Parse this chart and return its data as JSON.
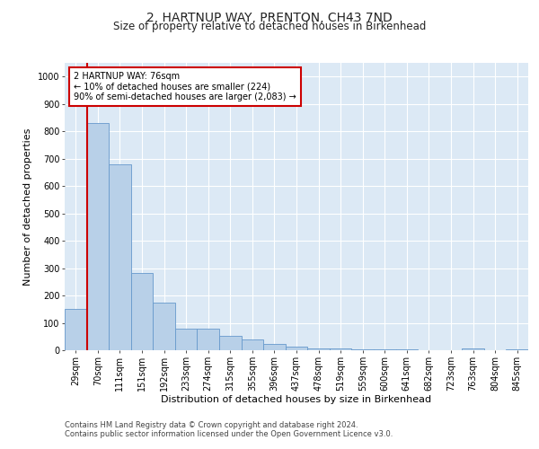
{
  "title": "2, HARTNUP WAY, PRENTON, CH43 7ND",
  "subtitle": "Size of property relative to detached houses in Birkenhead",
  "xlabel": "Distribution of detached houses by size in Birkenhead",
  "ylabel": "Number of detached properties",
  "categories": [
    "29sqm",
    "70sqm",
    "111sqm",
    "151sqm",
    "192sqm",
    "233sqm",
    "274sqm",
    "315sqm",
    "355sqm",
    "396sqm",
    "437sqm",
    "478sqm",
    "519sqm",
    "559sqm",
    "600sqm",
    "641sqm",
    "682sqm",
    "723sqm",
    "763sqm",
    "804sqm",
    "845sqm"
  ],
  "values": [
    150,
    830,
    680,
    283,
    175,
    78,
    78,
    52,
    40,
    22,
    13,
    8,
    7,
    2,
    2,
    2,
    0,
    0,
    8,
    0,
    2
  ],
  "bar_color": "#b8d0e8",
  "bar_edgecolor": "#6699cc",
  "property_line_color": "#cc0000",
  "annotation_text": "2 HARTNUP WAY: 76sqm\n← 10% of detached houses are smaller (224)\n90% of semi-detached houses are larger (2,083) →",
  "annotation_box_edgecolor": "#cc0000",
  "annotation_box_facecolor": "#ffffff",
  "ylim": [
    0,
    1050
  ],
  "yticks": [
    0,
    100,
    200,
    300,
    400,
    500,
    600,
    700,
    800,
    900,
    1000
  ],
  "footer1": "Contains HM Land Registry data © Crown copyright and database right 2024.",
  "footer2": "Contains public sector information licensed under the Open Government Licence v3.0.",
  "plot_bg_color": "#dce9f5",
  "title_fontsize": 10,
  "subtitle_fontsize": 8.5,
  "axis_label_fontsize": 8,
  "tick_fontsize": 7,
  "annotation_fontsize": 7,
  "footer_fontsize": 6
}
